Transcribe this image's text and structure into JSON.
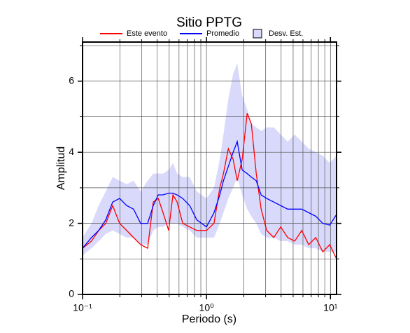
{
  "chart_data": {
    "type": "line",
    "title": "Sitio PPTG",
    "xlabel": "Periodo (s)",
    "ylabel": "Amplitud",
    "xscale": "log",
    "xlim": [
      0.1,
      11.2
    ],
    "ylim": [
      0,
      7.1
    ],
    "xticks": [
      {
        "value": 0.1,
        "label": "10⁻¹"
      },
      {
        "value": 1,
        "label": "10⁰"
      },
      {
        "value": 10,
        "label": "10¹"
      }
    ],
    "xminor": [
      0.2,
      0.3,
      0.4,
      0.5,
      0.6,
      0.7,
      0.8,
      0.9,
      2,
      3,
      4,
      5,
      6,
      7,
      8,
      9
    ],
    "yticks": [
      0,
      2,
      4,
      6
    ],
    "yminor": [
      1,
      3,
      5,
      7
    ],
    "grid": true,
    "legend": "top",
    "x": [
      0.1,
      0.118,
      0.135,
      0.154,
      0.175,
      0.199,
      0.227,
      0.258,
      0.294,
      0.335,
      0.372,
      0.408,
      0.446,
      0.495,
      0.536,
      0.579,
      0.643,
      0.732,
      0.834,
      1.0,
      1.15,
      1.28,
      1.37,
      1.5,
      1.64,
      1.77,
      1.94,
      2.13,
      2.3,
      2.52,
      2.76,
      3.06,
      3.49,
      3.97,
      4.52,
      5.15,
      5.87,
      6.68,
      7.61,
      8.67,
      9.87,
      11.2
    ],
    "series": [
      {
        "name": "Este evento",
        "color": "#ff0000",
        "values": [
          1.3,
          1.5,
          1.8,
          2.0,
          2.5,
          2.0,
          1.8,
          1.6,
          1.4,
          1.3,
          2.6,
          2.7,
          2.3,
          1.8,
          2.8,
          2.6,
          2.0,
          1.9,
          1.8,
          1.8,
          2.0,
          3.0,
          3.4,
          4.1,
          3.8,
          3.2,
          3.8,
          5.1,
          4.8,
          3.4,
          2.4,
          1.8,
          1.6,
          1.9,
          1.6,
          1.5,
          1.8,
          1.4,
          1.6,
          1.2,
          1.4,
          1.0
        ]
      },
      {
        "name": "Promedio",
        "color": "#0000ff",
        "values": [
          1.3,
          1.6,
          1.8,
          2.1,
          2.6,
          2.7,
          2.5,
          2.4,
          2.0,
          2.0,
          2.5,
          2.8,
          2.8,
          2.85,
          2.85,
          2.8,
          2.7,
          2.5,
          2.1,
          1.9,
          2.3,
          2.8,
          3.2,
          3.6,
          4.0,
          4.3,
          3.5,
          3.4,
          3.3,
          3.2,
          2.8,
          2.7,
          2.6,
          2.5,
          2.4,
          2.4,
          2.4,
          2.3,
          2.2,
          2.0,
          1.95,
          2.25
        ]
      },
      {
        "name": "Desv. Est.",
        "color": "#d9d9fb",
        "type": "band",
        "lower": [
          1.1,
          1.3,
          1.5,
          1.7,
          1.8,
          1.7,
          1.6,
          1.6,
          1.4,
          1.4,
          1.8,
          1.9,
          1.9,
          2.0,
          2.0,
          2.0,
          1.9,
          1.8,
          1.6,
          1.6,
          1.6,
          2.0,
          2.3,
          2.7,
          3.0,
          3.3,
          2.8,
          2.4,
          2.2,
          2.0,
          1.7,
          1.6,
          1.6,
          1.5,
          1.5,
          1.4,
          1.4,
          1.3,
          1.3,
          1.2,
          1.2,
          1.2
        ],
        "upper": [
          1.6,
          2.0,
          2.5,
          2.9,
          3.3,
          3.2,
          3.1,
          3.2,
          2.9,
          3.2,
          3.4,
          3.4,
          3.4,
          3.5,
          3.7,
          3.4,
          3.3,
          3.3,
          2.9,
          2.7,
          3.0,
          3.8,
          4.5,
          5.5,
          6.2,
          6.5,
          5.6,
          5.2,
          4.8,
          4.7,
          4.6,
          4.7,
          4.7,
          4.5,
          4.3,
          4.5,
          4.3,
          4.1,
          4.0,
          3.9,
          3.7,
          3.9
        ]
      }
    ]
  }
}
